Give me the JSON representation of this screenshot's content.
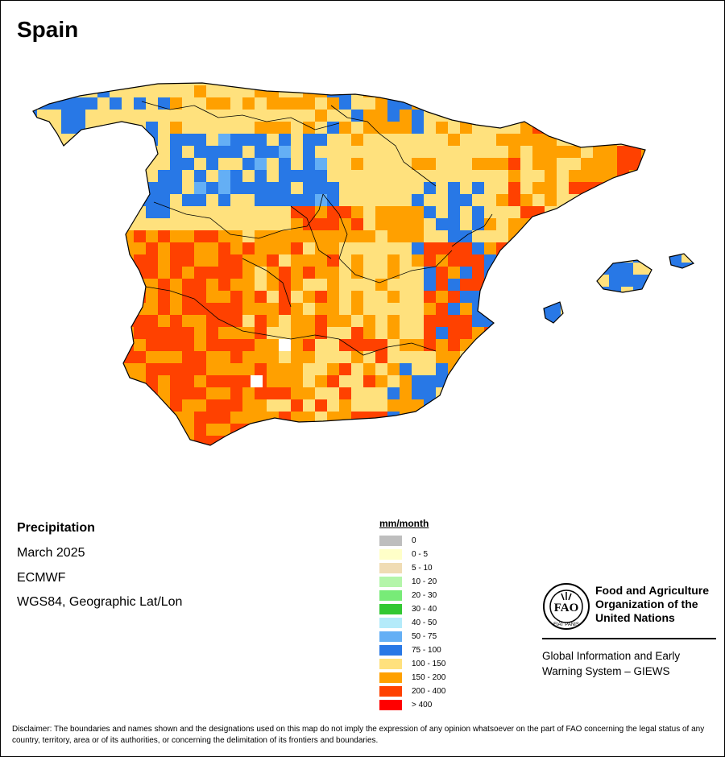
{
  "title": "Spain",
  "info": {
    "variable": "Precipitation",
    "period": "March 2025",
    "model": "ECMWF",
    "projection": "WGS84, Geographic Lat/Lon"
  },
  "legend": {
    "title": "mm/month",
    "items": [
      {
        "label": "0",
        "color": "#bebebe"
      },
      {
        "label": "0 - 5",
        "color": "#ffffc8"
      },
      {
        "label": "5 - 10",
        "color": "#f0dcb4"
      },
      {
        "label": "10 - 20",
        "color": "#b4f5aa"
      },
      {
        "label": "20 - 30",
        "color": "#78eb78"
      },
      {
        "label": "30 - 40",
        "color": "#32c832"
      },
      {
        "label": "40 - 50",
        "color": "#b4ebfa"
      },
      {
        "label": "50 - 75",
        "color": "#64aff5"
      },
      {
        "label": "75 - 100",
        "color": "#2878e6"
      },
      {
        "label": "100 - 150",
        "color": "#ffe17d"
      },
      {
        "label": "150 - 200",
        "color": "#ffa000"
      },
      {
        "label": "200 - 400",
        "color": "#ff4100"
      },
      {
        "label": "> 400",
        "color": "#ff0000"
      }
    ]
  },
  "organization": {
    "name": "Food and Agriculture Organization of the United Nations",
    "system": "Global Information and Early Warning System – GIEWS"
  },
  "disclaimer": "Disclaimer: The boundaries and names shown and the designations used on this map do not imply the expression of any opinion whatsoever on the part of FAO concerning the legal status of any country, territory, area or of its authorities, or concerning the delimitation of its frontiers and boundaries."
}
